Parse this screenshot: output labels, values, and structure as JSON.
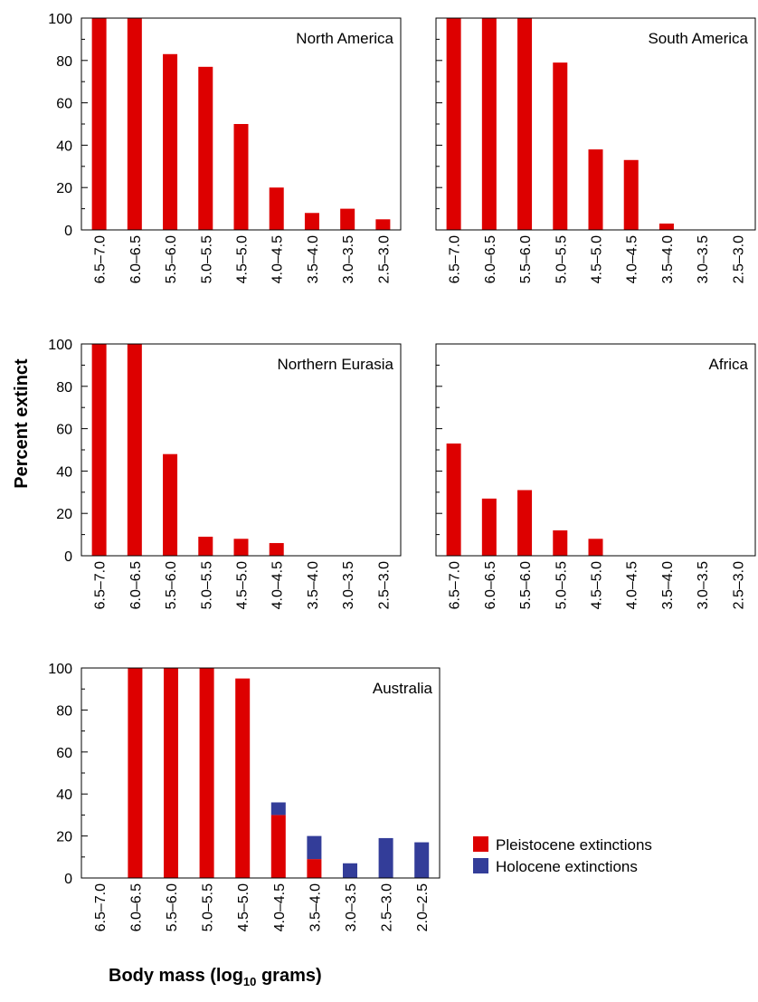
{
  "figure": {
    "ylabel": "Percent extinct",
    "xlabel_main": "Body mass (log",
    "xlabel_sub": "10",
    "xlabel_end": " grams)",
    "colors": {
      "pleistocene": "#dd0000",
      "holocene": "#333d99"
    },
    "legend": [
      {
        "name": "Pleistocene extinctions",
        "color": "#dd0000"
      },
      {
        "name": "Holocene extinctions",
        "color": "#333d99"
      }
    ]
  },
  "chart_data": [
    {
      "type": "bar",
      "title": "North America",
      "ylim": [
        0,
        100
      ],
      "yticks": [
        "0",
        "20",
        "40",
        "60",
        "80",
        "100"
      ],
      "categories": [
        "6.5–7.0",
        "6.0–6.5",
        "5.5–6.0",
        "5.0–5.5",
        "4.5–5.0",
        "4.0–4.5",
        "3.5–4.0",
        "3.0–3.5",
        "2.5–3.0"
      ],
      "series": [
        {
          "name": "Pleistocene extinctions",
          "values": [
            100,
            100,
            83,
            77,
            50,
            20,
            8,
            10,
            5
          ]
        }
      ]
    },
    {
      "type": "bar",
      "title": "South America",
      "ylim": [
        0,
        100
      ],
      "yticks": [],
      "categories": [
        "6.5–7.0",
        "6.0–6.5",
        "5.5–6.0",
        "5.0–5.5",
        "4.5–5.0",
        "4.0–4.5",
        "3.5–4.0",
        "3.0–3.5",
        "2.5–3.0"
      ],
      "series": [
        {
          "name": "Pleistocene extinctions",
          "values": [
            100,
            100,
            100,
            79,
            38,
            33,
            3,
            0,
            0
          ]
        }
      ]
    },
    {
      "type": "bar",
      "title": "Northern Eurasia",
      "ylim": [
        0,
        100
      ],
      "yticks": [
        "0",
        "20",
        "40",
        "60",
        "80",
        "100"
      ],
      "categories": [
        "6.5–7.0",
        "6.0–6.5",
        "5.5–6.0",
        "5.0–5.5",
        "4.5–5.0",
        "4.0–4.5",
        "3.5–4.0",
        "3.0–3.5",
        "2.5–3.0"
      ],
      "series": [
        {
          "name": "Pleistocene extinctions",
          "values": [
            100,
            100,
            48,
            9,
            8,
            6,
            0,
            0,
            0
          ]
        }
      ]
    },
    {
      "type": "bar",
      "title": "Africa",
      "ylim": [
        0,
        100
      ],
      "yticks": [],
      "categories": [
        "6.5–7.0",
        "6.0–6.5",
        "5.5–6.0",
        "5.0–5.5",
        "4.5–5.0",
        "4.0–4.5",
        "3.5–4.0",
        "3.0–3.5",
        "2.5–3.0"
      ],
      "series": [
        {
          "name": "Pleistocene extinctions",
          "values": [
            53,
            27,
            31,
            12,
            8,
            0,
            0,
            0,
            0
          ]
        }
      ]
    },
    {
      "type": "bar",
      "title": "Australia",
      "ylim": [
        0,
        100
      ],
      "stacked": true,
      "yticks": [
        "0",
        "20",
        "40",
        "60",
        "80",
        "100"
      ],
      "categories": [
        "6.5–7.0",
        "6.0–6.5",
        "5.5–6.0",
        "5.0–5.5",
        "4.5–5.0",
        "4.0–4.5",
        "3.5–4.0",
        "3.0–3.5",
        "2.5–3.0",
        "2.0–2.5"
      ],
      "series": [
        {
          "name": "Pleistocene extinctions",
          "values": [
            0,
            100,
            100,
            100,
            95,
            30,
            9,
            0,
            0,
            0
          ]
        },
        {
          "name": "Holocene extinctions",
          "values": [
            0,
            0,
            0,
            0,
            0,
            6,
            11,
            7,
            19,
            17
          ]
        }
      ]
    }
  ]
}
